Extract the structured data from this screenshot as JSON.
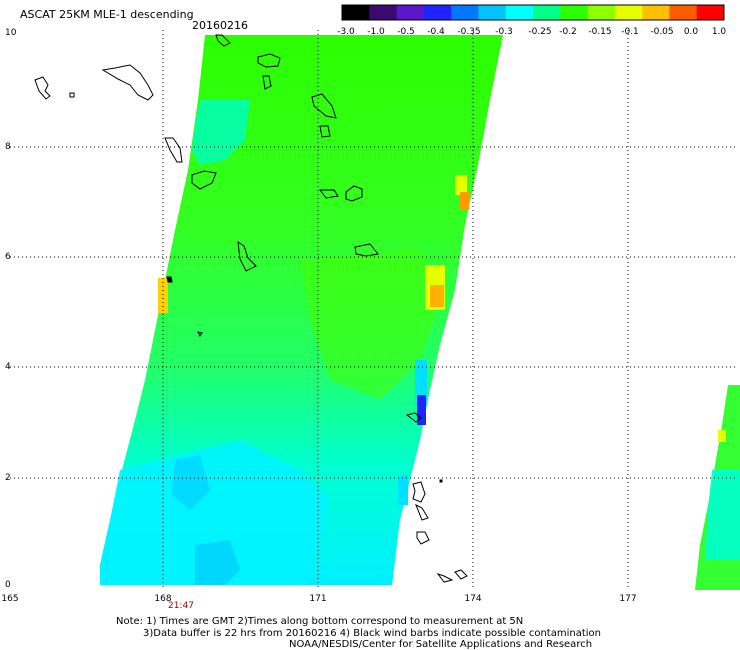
{
  "header": {
    "title": "ASCAT 25KM MLE-1 descending",
    "date": "20160216"
  },
  "colorbar": {
    "labels": [
      "-3.0",
      "-1.0",
      "-0.5",
      "-0.4",
      "-0.35",
      "-0.3",
      "-0.25",
      "-0.2",
      "-0.15",
      "-0.1",
      "-0.05",
      "0.0",
      "1.0"
    ],
    "colors": [
      "#000000",
      "#3b0a6e",
      "#5a16c8",
      "#1f24ff",
      "#0078ff",
      "#00c2ff",
      "#00ffff",
      "#00ff8a",
      "#2cff00",
      "#8cff00",
      "#e6ff00",
      "#ffc000",
      "#ff5c00",
      "#ff0000"
    ]
  },
  "axes": {
    "lat_labels": [
      "0",
      "2",
      "4",
      "6",
      "8",
      "10"
    ],
    "lon_labels": [
      "165",
      "168",
      "171",
      "174",
      "177"
    ],
    "time_label": "21:47"
  },
  "notes": {
    "line1": "Note: 1) Times are GMT 2)Times along bottom correspond to measurement at 5N",
    "line2": "3)Data buffer is 22 hrs from 20160216 4) Black wind barbs indicate possible contamination",
    "line3": "NOAA/NESDIS/Center for Satellite Applications and Research"
  }
}
